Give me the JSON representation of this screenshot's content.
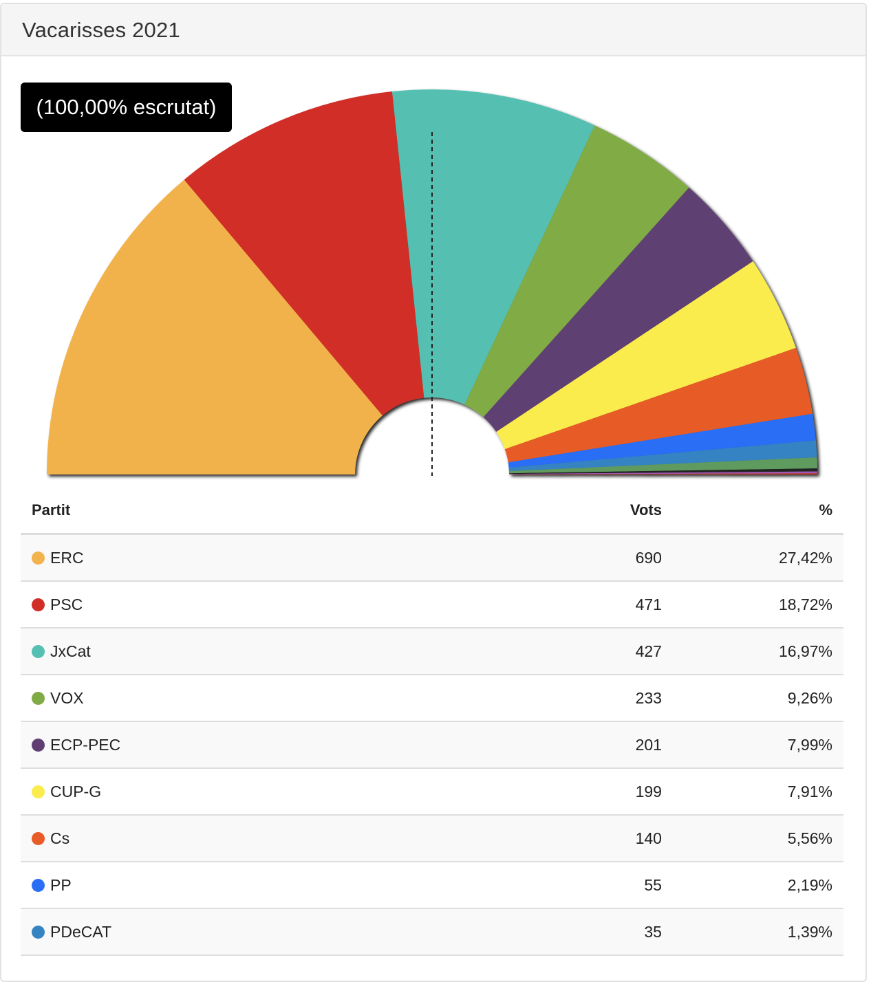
{
  "header": {
    "title": "Vacarisses 2021"
  },
  "badge": {
    "text": "(100,00% escrutat)"
  },
  "table": {
    "headers": {
      "party": "Partit",
      "votes": "Vots",
      "percent": "%"
    },
    "rows": [
      {
        "party": "ERC",
        "votes": "690",
        "percent": "27,42%",
        "color": "#f2b24c"
      },
      {
        "party": "PSC",
        "votes": "471",
        "percent": "18,72%",
        "color": "#d02e27"
      },
      {
        "party": "JxCat",
        "votes": "427",
        "percent": "16,97%",
        "color": "#55bfb2"
      },
      {
        "party": "VOX",
        "votes": "233",
        "percent": "9,26%",
        "color": "#80ab44"
      },
      {
        "party": "ECP-PEC",
        "votes": "201",
        "percent": "7,99%",
        "color": "#5f3f73"
      },
      {
        "party": "CUP-G",
        "votes": "199",
        "percent": "7,91%",
        "color": "#faec4d"
      },
      {
        "party": "Cs",
        "votes": "140",
        "percent": "5,56%",
        "color": "#e75c28"
      },
      {
        "party": "PP",
        "votes": "55",
        "percent": "2,19%",
        "color": "#2a6ef5"
      },
      {
        "party": "PDeCAT",
        "votes": "35",
        "percent": "1,39%",
        "color": "#3683c3"
      }
    ]
  },
  "chart_data": {
    "type": "pie",
    "shape": "semicircle-donut",
    "title": "",
    "midline": "dashed",
    "series": [
      {
        "name": "ERC",
        "value": 27.42,
        "color": "#f2b24c"
      },
      {
        "name": "PSC",
        "value": 18.72,
        "color": "#d02e27"
      },
      {
        "name": "JxCat",
        "value": 16.97,
        "color": "#55bfb2"
      },
      {
        "name": "VOX",
        "value": 9.26,
        "color": "#80ab44"
      },
      {
        "name": "ECP-PEC",
        "value": 7.99,
        "color": "#5f3f73"
      },
      {
        "name": "CUP-G",
        "value": 7.91,
        "color": "#faec4d"
      },
      {
        "name": "Cs",
        "value": 5.56,
        "color": "#e75c28"
      },
      {
        "name": "PP",
        "value": 2.19,
        "color": "#2a6ef5"
      },
      {
        "name": "PDeCAT",
        "value": 1.39,
        "color": "#3683c3"
      },
      {
        "value": 0.9,
        "color": "#5f9a5e"
      },
      {
        "value": 0.25,
        "color": "#222222"
      },
      {
        "value": 0.15,
        "color": "#9b59b6"
      },
      {
        "value": 0.1,
        "color": "#c0392b"
      }
    ]
  }
}
